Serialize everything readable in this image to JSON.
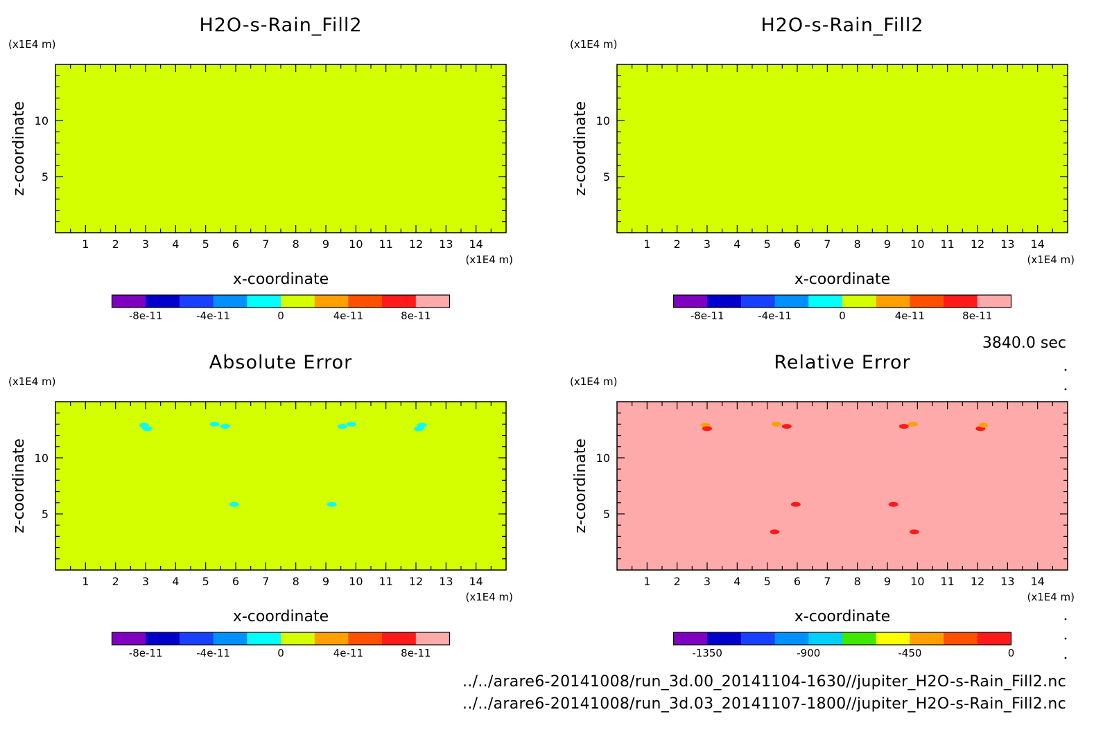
{
  "figure": {
    "time_label": "3840.0 sec",
    "files": [
      "../../arare6-20141008/run_3d.00_20141104-1630//jupiter_H2O-s-Rain_Fill2.nc",
      "../../arare6-20141008/run_3d.03_20141107-1800//jupiter_H2O-s-Rain_Fill2.nc"
    ]
  },
  "chart_data": [
    {
      "type": "heatmap",
      "title": "H2O-s-Rain_Fill2",
      "xlabel": "x-coordinate",
      "ylabel": "z-coordinate",
      "x_unit": "(x1E4 m)",
      "z_unit": "(x1E4 m)",
      "xlim": [
        0,
        15
      ],
      "zlim": [
        0,
        15
      ],
      "x_ticks": [
        1,
        2,
        3,
        4,
        5,
        6,
        7,
        8,
        9,
        10,
        11,
        12,
        13,
        14
      ],
      "z_ticks": [
        5,
        10
      ],
      "field_value": 0,
      "field_color": "#d4ff00",
      "features": [],
      "colorbar": {
        "colors": [
          "#7f00bf",
          "#0000cc",
          "#1940ff",
          "#0090ff",
          "#00ffff",
          "#d4ff00",
          "#ff9f00",
          "#ff5000",
          "#ff1a1a",
          "#ffaaaa"
        ],
        "labels": [
          "-8e-11",
          "-4e-11",
          "0",
          "4e-11",
          "8e-11"
        ],
        "label_positions": [
          1,
          3,
          5,
          7,
          9
        ]
      }
    },
    {
      "type": "heatmap",
      "title": "H2O-s-Rain_Fill2",
      "xlabel": "x-coordinate",
      "ylabel": "z-coordinate",
      "x_unit": "(x1E4 m)",
      "z_unit": "(x1E4 m)",
      "xlim": [
        0,
        15
      ],
      "zlim": [
        0,
        15
      ],
      "x_ticks": [
        1,
        2,
        3,
        4,
        5,
        6,
        7,
        8,
        9,
        10,
        11,
        12,
        13,
        14
      ],
      "z_ticks": [
        5,
        10
      ],
      "field_value": 0,
      "field_color": "#d4ff00",
      "features": [],
      "colorbar": {
        "colors": [
          "#7f00bf",
          "#0000cc",
          "#1940ff",
          "#0090ff",
          "#00ffff",
          "#d4ff00",
          "#ff9f00",
          "#ff5000",
          "#ff1a1a",
          "#ffaaaa"
        ],
        "labels": [
          "-8e-11",
          "-4e-11",
          "0",
          "4e-11",
          "8e-11"
        ],
        "label_positions": [
          1,
          3,
          5,
          7,
          9
        ]
      }
    },
    {
      "type": "heatmap",
      "title": "Absolute Error",
      "xlabel": "x-coordinate",
      "ylabel": "z-coordinate",
      "x_unit": "(x1E4 m)",
      "z_unit": "(x1E4 m)",
      "xlim": [
        0,
        15
      ],
      "zlim": [
        0,
        15
      ],
      "x_ticks": [
        1,
        2,
        3,
        4,
        5,
        6,
        7,
        8,
        9,
        10,
        11,
        12,
        13,
        14
      ],
      "z_ticks": [
        5,
        10
      ],
      "field_value": 0,
      "field_color": "#d4ff00",
      "features": [
        {
          "x": 2.95,
          "z": 12.9,
          "color": "#00ffff"
        },
        {
          "x": 3.05,
          "z": 12.6,
          "color": "#00ffff"
        },
        {
          "x": 5.3,
          "z": 13.0,
          "color": "#00ffff"
        },
        {
          "x": 5.65,
          "z": 12.8,
          "color": "#00ffff"
        },
        {
          "x": 9.55,
          "z": 12.8,
          "color": "#00ffff"
        },
        {
          "x": 9.85,
          "z": 13.0,
          "color": "#00ffff"
        },
        {
          "x": 12.1,
          "z": 12.6,
          "color": "#00ffff"
        },
        {
          "x": 12.2,
          "z": 12.9,
          "color": "#00ffff"
        },
        {
          "x": 5.95,
          "z": 5.85,
          "color": "#00ffff"
        },
        {
          "x": 9.2,
          "z": 5.85,
          "color": "#00ffff"
        }
      ],
      "colorbar": {
        "colors": [
          "#7f00bf",
          "#0000cc",
          "#1940ff",
          "#0090ff",
          "#00ffff",
          "#d4ff00",
          "#ff9f00",
          "#ff5000",
          "#ff1a1a",
          "#ffaaaa"
        ],
        "labels": [
          "-8e-11",
          "-4e-11",
          "0",
          "4e-11",
          "8e-11"
        ],
        "label_positions": [
          1,
          3,
          5,
          7,
          9
        ]
      }
    },
    {
      "type": "heatmap",
      "title": "Relative Error",
      "xlabel": "x-coordinate",
      "ylabel": "z-coordinate",
      "x_unit": "(x1E4 m)",
      "z_unit": "(x1E4 m)",
      "xlim": [
        0,
        15
      ],
      "zlim": [
        0,
        15
      ],
      "x_ticks": [
        1,
        2,
        3,
        4,
        5,
        6,
        7,
        8,
        9,
        10,
        11,
        12,
        13,
        14
      ],
      "z_ticks": [
        5,
        10
      ],
      "field_value": 0,
      "field_color": "#ffaaaa",
      "features": [
        {
          "x": 2.95,
          "z": 12.9,
          "color": "#ff9f00"
        },
        {
          "x": 3.0,
          "z": 12.6,
          "color": "#ff1a1a"
        },
        {
          "x": 5.3,
          "z": 13.0,
          "color": "#ff9f00"
        },
        {
          "x": 5.65,
          "z": 12.8,
          "color": "#ff1a1a"
        },
        {
          "x": 9.55,
          "z": 12.8,
          "color": "#ff1a1a"
        },
        {
          "x": 9.85,
          "z": 13.0,
          "color": "#ff9f00"
        },
        {
          "x": 12.1,
          "z": 12.6,
          "color": "#ff1a1a"
        },
        {
          "x": 12.2,
          "z": 12.9,
          "color": "#ff9f00"
        },
        {
          "x": 5.95,
          "z": 5.85,
          "color": "#ff1a1a"
        },
        {
          "x": 9.2,
          "z": 5.85,
          "color": "#ff1a1a"
        },
        {
          "x": 5.25,
          "z": 3.4,
          "color": "#ff1a1a"
        },
        {
          "x": 9.9,
          "z": 3.4,
          "color": "#ff1a1a"
        }
      ],
      "colorbar": {
        "colors": [
          "#7f00bf",
          "#0000cc",
          "#1940ff",
          "#0090ff",
          "#00d0ff",
          "#40e800",
          "#ffff00",
          "#ff9f00",
          "#ff5000",
          "#ff1a1a"
        ],
        "labels": [
          "-1350",
          "-900",
          "-450",
          "0"
        ],
        "label_positions": [
          1,
          4,
          7,
          10
        ]
      }
    }
  ]
}
